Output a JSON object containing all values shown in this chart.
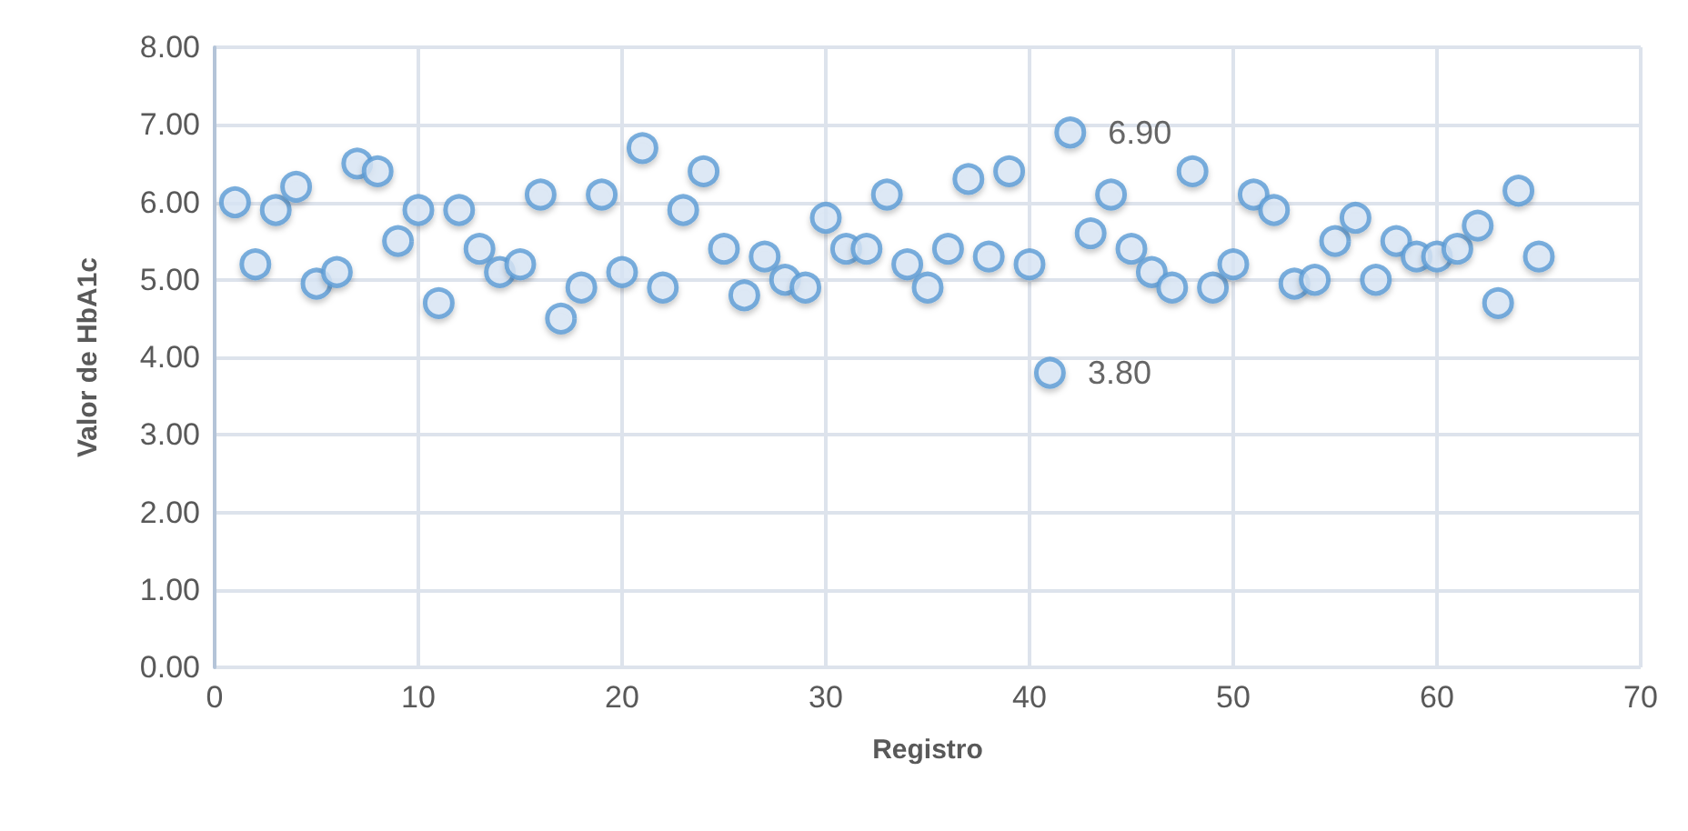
{
  "chart_data": {
    "type": "scatter",
    "xlabel": "Registro",
    "ylabel": "Valor de HbA1c",
    "x": [
      1,
      2,
      3,
      4,
      5,
      6,
      7,
      8,
      9,
      10,
      11,
      12,
      13,
      14,
      15,
      16,
      17,
      18,
      19,
      20,
      21,
      22,
      23,
      24,
      25,
      26,
      27,
      28,
      29,
      30,
      31,
      32,
      33,
      34,
      35,
      36,
      37,
      38,
      39,
      40,
      41,
      42,
      43,
      44,
      45,
      46,
      47,
      48,
      49,
      50,
      51,
      52,
      53,
      54,
      55,
      56,
      57,
      58,
      59,
      60,
      61,
      62,
      63,
      64,
      65
    ],
    "series": [
      {
        "color": "#5b9bd5",
        "values": [
          6.0,
          5.2,
          5.9,
          6.2,
          4.95,
          5.1,
          6.5,
          6.4,
          5.5,
          5.9,
          4.7,
          5.9,
          5.4,
          5.1,
          5.2,
          6.1,
          4.5,
          4.9,
          6.1,
          5.1,
          6.7,
          4.9,
          5.9,
          6.4,
          5.4,
          4.8,
          5.3,
          5.0,
          4.9,
          5.8,
          5.4,
          5.4,
          6.1,
          5.2,
          4.9,
          5.4,
          6.3,
          5.3,
          6.4,
          5.2,
          3.8,
          6.9,
          5.6,
          6.1,
          5.4,
          5.1,
          4.9,
          6.4,
          4.9,
          5.2,
          6.1,
          5.9,
          4.95,
          5.0,
          5.5,
          5.8,
          5.0,
          5.5,
          5.3,
          5.3,
          5.4,
          5.7,
          4.7,
          6.15,
          5.3
        ],
        "value_labels": [
          null,
          null,
          null,
          null,
          null,
          null,
          null,
          null,
          null,
          null,
          null,
          null,
          null,
          null,
          null,
          null,
          null,
          null,
          null,
          null,
          null,
          null,
          null,
          null,
          null,
          null,
          null,
          null,
          null,
          null,
          null,
          null,
          null,
          null,
          null,
          null,
          null,
          null,
          null,
          null,
          "3.80",
          "6.90",
          null,
          null,
          null,
          null,
          null,
          null,
          null,
          null,
          null,
          null,
          null,
          null,
          null,
          null,
          null,
          null,
          null,
          null,
          null,
          null,
          null,
          null,
          null
        ]
      }
    ],
    "xlim": [
      0,
      70
    ],
    "xticks": [
      0,
      10,
      20,
      30,
      40,
      50,
      60,
      70
    ],
    "ylim": [
      0,
      8
    ],
    "yticks": [
      {
        "value": 0,
        "label": "0.00"
      },
      {
        "value": 1,
        "label": "1.00"
      },
      {
        "value": 2,
        "label": "2.00"
      },
      {
        "value": 3,
        "label": "3.00"
      },
      {
        "value": 4,
        "label": "4.00"
      },
      {
        "value": 5,
        "label": "5.00"
      },
      {
        "value": 6,
        "label": "6.00"
      },
      {
        "value": 7,
        "label": "7.00"
      },
      {
        "value": 8,
        "label": "8.00"
      }
    ],
    "grid": true,
    "marker": "circle"
  }
}
